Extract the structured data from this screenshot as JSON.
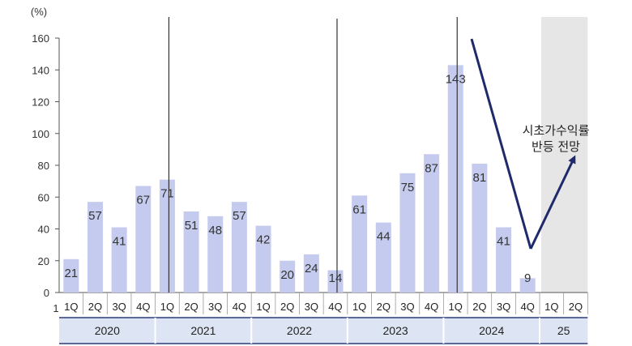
{
  "chart_data": {
    "type": "bar",
    "unit_label": "(%)",
    "ylim": [
      0,
      160
    ],
    "yticks": [
      0,
      20,
      40,
      60,
      80,
      100,
      120,
      140,
      160
    ],
    "categories": [
      "1Q",
      "2Q",
      "3Q",
      "4Q",
      "1Q",
      "2Q",
      "3Q",
      "4Q",
      "1Q",
      "2Q",
      "3Q",
      "4Q",
      "1Q",
      "2Q",
      "3Q",
      "4Q",
      "1Q",
      "2Q",
      "3Q",
      "4Q",
      "1Q",
      "2Q"
    ],
    "years": [
      "2020",
      "2021",
      "2022",
      "2023",
      "2024",
      "25"
    ],
    "series": [
      {
        "values": [
          21,
          57,
          41,
          67,
          71,
          51,
          48,
          57,
          42,
          20,
          24,
          14,
          61,
          44,
          75,
          87,
          143,
          81,
          41,
          9,
          null,
          null
        ]
      }
    ],
    "data_labels": [
      "21",
      "57",
      "41",
      "67",
      "71",
      "51",
      "48",
      "57",
      "42",
      "20",
      "24",
      "14",
      "61",
      "44",
      "75",
      "87",
      "143",
      "81",
      "41",
      "9",
      "",
      ""
    ],
    "annotation": [
      "시초가수익률",
      "반등 전망"
    ],
    "forecast_quarters": [
      "1Q",
      "2Q"
    ],
    "bar_color": "#c5cbee",
    "arrow_color": "#1f2a6b",
    "forecast_shade": "#e6e6e6",
    "year_band_color": "#dde4f3",
    "grid": false
  }
}
